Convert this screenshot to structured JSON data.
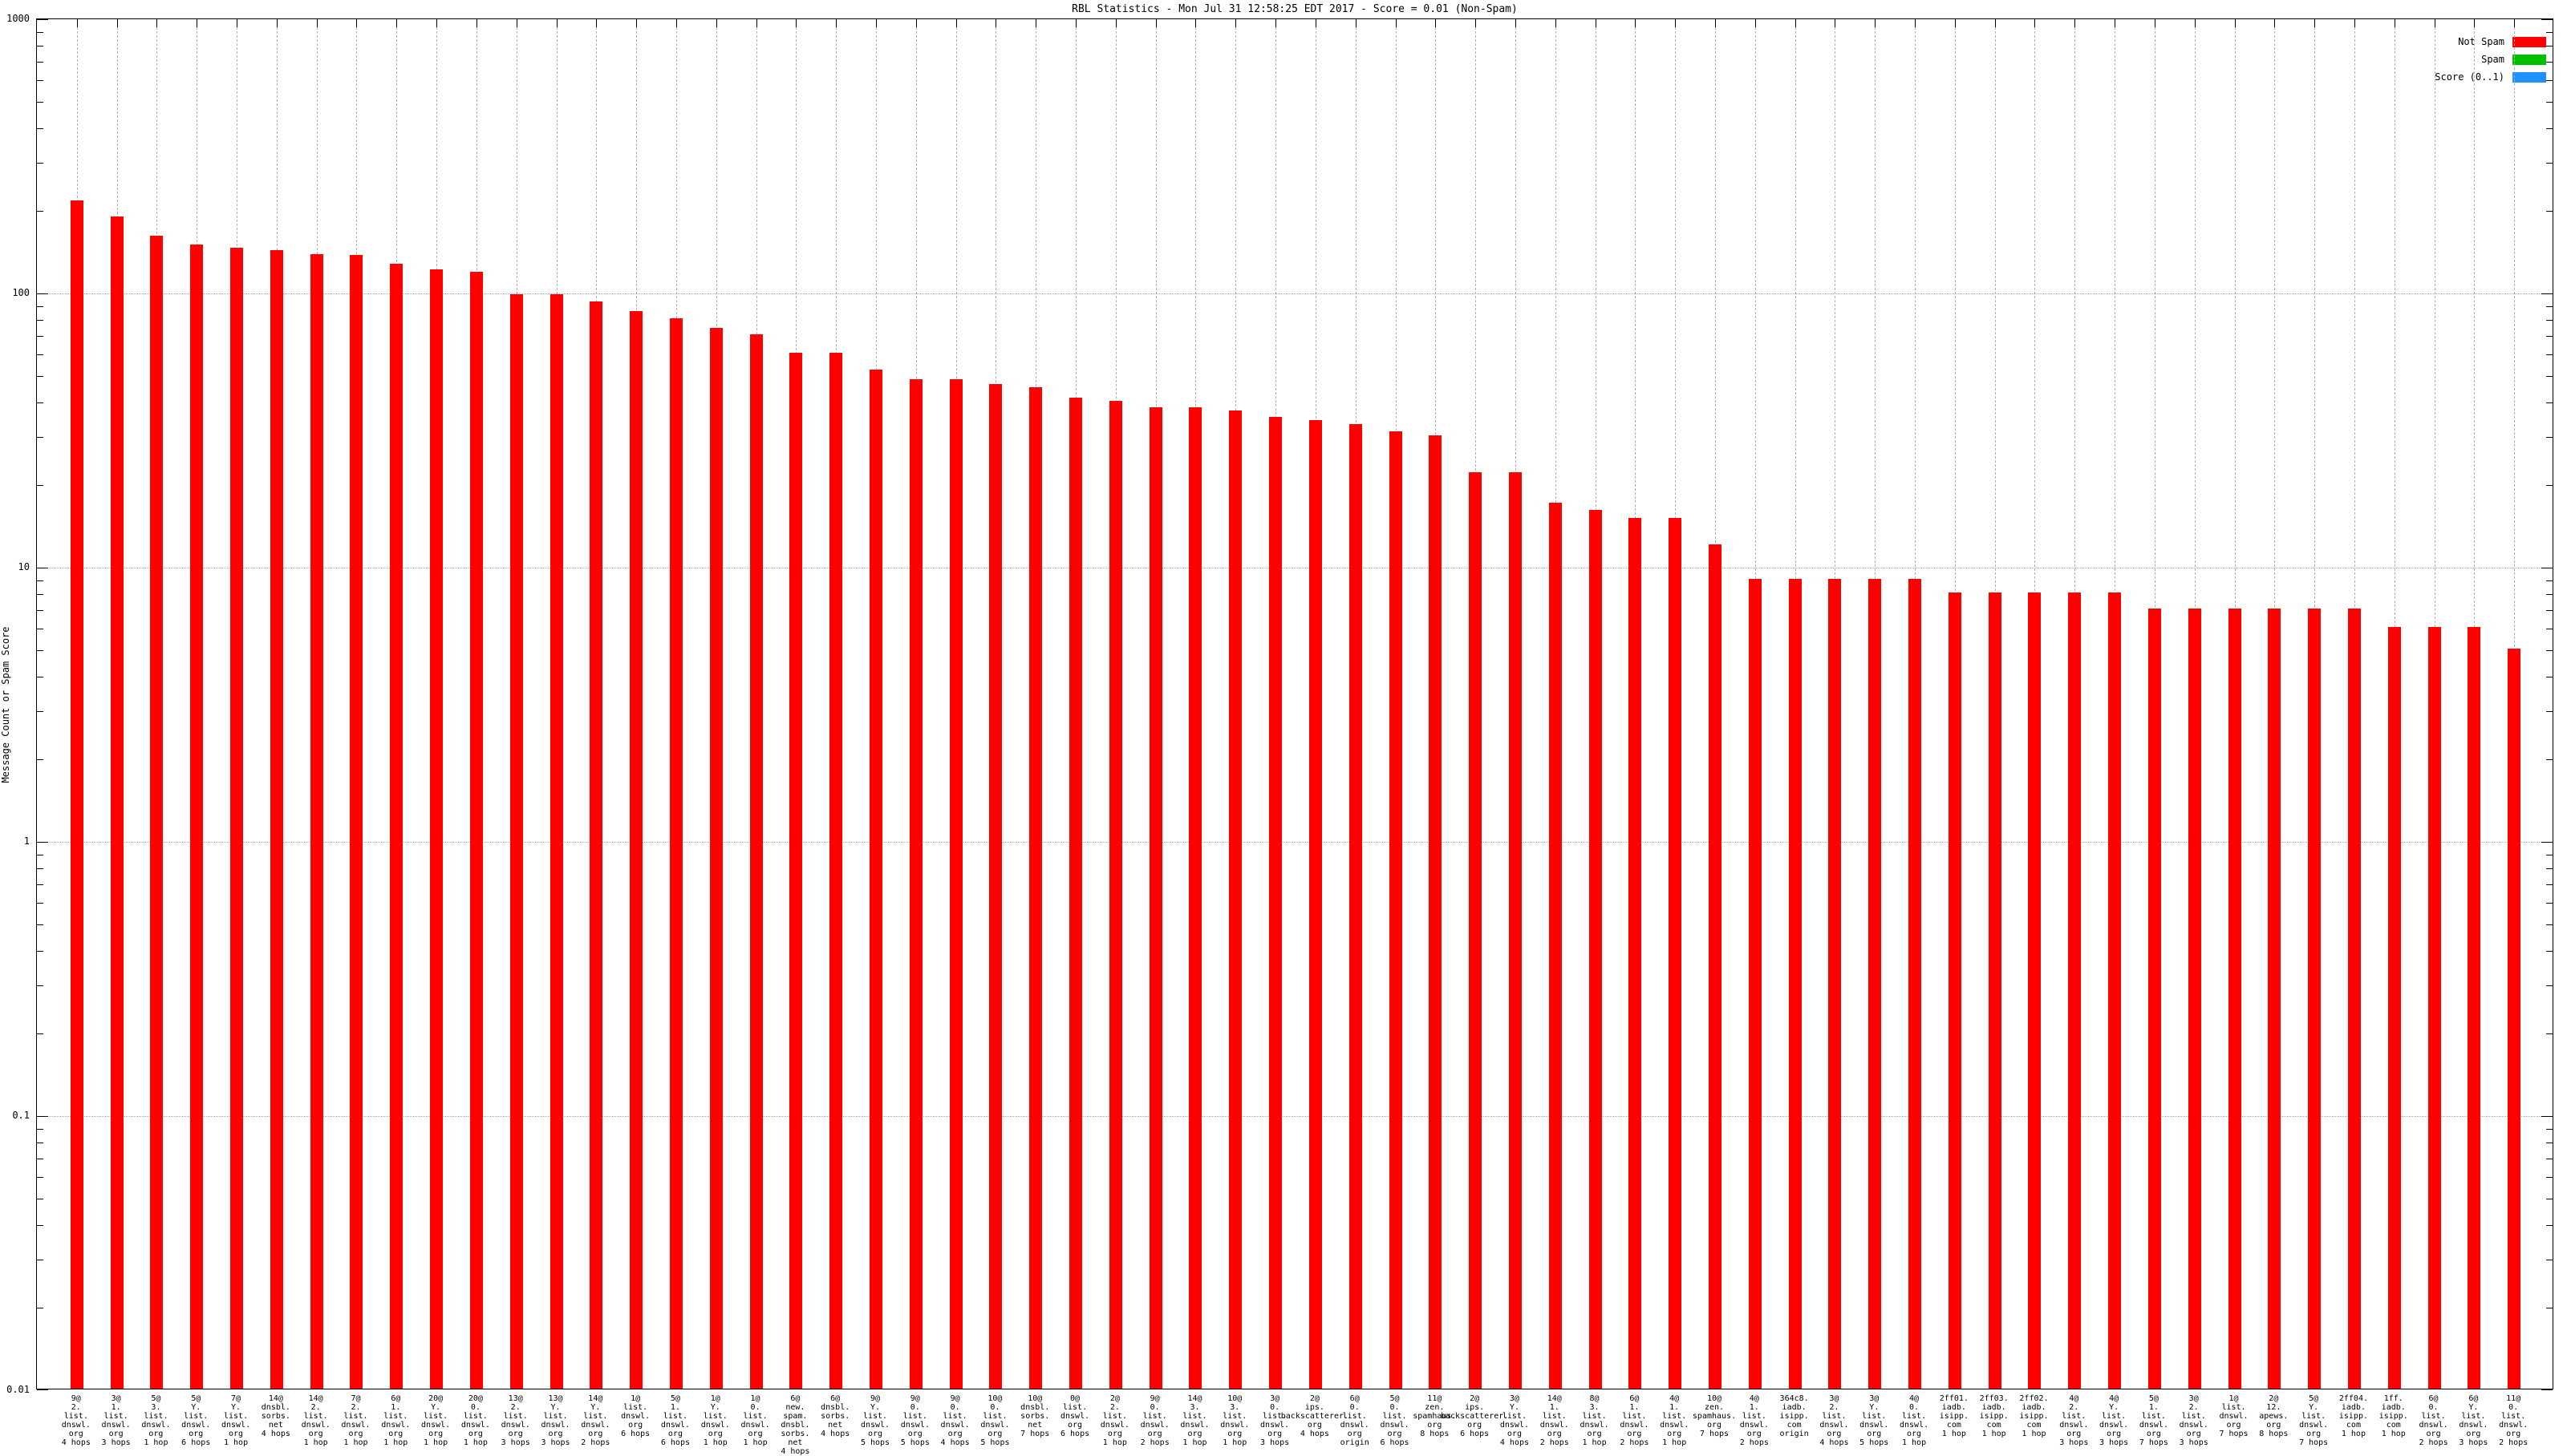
{
  "chart_data": {
    "type": "bar",
    "title": "RBL Statistics - Mon Jul 31 12:58:25 EDT 2017 - Score = 0.01 (Non-Spam)",
    "xlabel": "",
    "ylabel": "Message Count or Spam Score",
    "yscale": "log",
    "ylim": [
      0.01,
      1000
    ],
    "ytick_labels": [
      "1000",
      "100",
      "10",
      "1",
      "0.1",
      "0.01"
    ],
    "grid": true,
    "legend_position": "top-right",
    "bar_color": "#ff0000",
    "legend": [
      {
        "label": "Not Spam",
        "color": "#ff0000"
      },
      {
        "label": "Spam",
        "color": "#00c000"
      },
      {
        "label": "Score (0..1)",
        "color": "#1e90ff"
      }
    ],
    "series_note": "only Not Spam counts visible; Score = 0.01 flat at axis bottom",
    "bars": [
      {
        "rbl": "9@2.list.dnswl.org",
        "hops": "4 hops",
        "count": 215
      },
      {
        "rbl": "3@1.list.dnswl.org",
        "hops": "3 hops",
        "count": 188
      },
      {
        "rbl": "5@3.list.dnswl.org",
        "hops": "1 hop",
        "count": 160
      },
      {
        "rbl": "5@Y.list.dnswl.org",
        "hops": "6 hops",
        "count": 149
      },
      {
        "rbl": "7@Y.list.dnswl.org",
        "hops": "1 hop",
        "count": 145
      },
      {
        "rbl": "14@dnsbl.sorbs.net",
        "hops": "4 hops",
        "count": 142
      },
      {
        "rbl": "14@2.list.dnswl.org",
        "hops": "1 hop",
        "count": 137
      },
      {
        "rbl": "7@2.list.dnswl.org",
        "hops": "1 hop",
        "count": 136
      },
      {
        "rbl": "6@1.list.dnswl.org",
        "hops": "1 hop",
        "count": 127
      },
      {
        "rbl": "20@Y.list.dnswl.org",
        "hops": "1 hop",
        "count": 121
      },
      {
        "rbl": "20@0.list.dnswl.org",
        "hops": "1 hop",
        "count": 118
      },
      {
        "rbl": "13@2.list.dnswl.org",
        "hops": "3 hops",
        "count": 98
      },
      {
        "rbl": "13@Y.list.dnswl.org",
        "hops": "3 hops",
        "count": 98
      },
      {
        "rbl": "14@Y.list.dnswl.org",
        "hops": "2 hops",
        "count": 92
      },
      {
        "rbl": "1@list.dnswl.org",
        "hops": "6 hops",
        "count": 85
      },
      {
        "rbl": "5@1.list.dnswl.org",
        "hops": "6 hops",
        "count": 80
      },
      {
        "rbl": "1@Y.list.dnswl.org",
        "hops": "1 hop",
        "count": 74
      },
      {
        "rbl": "1@0.list.dnswl.org",
        "hops": "1 hop",
        "count": 70
      },
      {
        "rbl": "6@new.spam.dnsbl.sorbs.net",
        "hops": "4 hops",
        "count": 60
      },
      {
        "rbl": "6@dnsbl.sorbs.net",
        "hops": "4 hops",
        "count": 60
      },
      {
        "rbl": "9@Y.list.dnswl.org",
        "hops": "5 hops",
        "count": 52
      },
      {
        "rbl": "9@0.list.dnswl.org",
        "hops": "5 hops",
        "count": 48
      },
      {
        "rbl": "9@0.list.dnswl.org",
        "hops": "4 hops",
        "count": 48
      },
      {
        "rbl": "10@0.list.dnswl.org",
        "hops": "5 hops",
        "count": 46
      },
      {
        "rbl": "10@dnsbl.sorbs.net",
        "hops": "7 hops",
        "count": 45
      },
      {
        "rbl": "0@list.dnswl.org",
        "hops": "6 hops",
        "count": 41
      },
      {
        "rbl": "2@2.list.dnswl.org",
        "hops": "1 hop",
        "count": 40
      },
      {
        "rbl": "9@0.list.dnswl.org",
        "hops": "2 hops",
        "count": 38
      },
      {
        "rbl": "14@3.list.dnswl.org",
        "hops": "1 hop",
        "count": 38
      },
      {
        "rbl": "10@3.list.dnswl.org",
        "hops": "1 hop",
        "count": 37
      },
      {
        "rbl": "3@0.list.dnswl.org",
        "hops": "3 hops",
        "count": 35
      },
      {
        "rbl": "2@ips.backscatterer.org",
        "hops": "4 hops",
        "count": 34
      },
      {
        "rbl": "6@0.list.dnswl.org",
        "hops": "origin",
        "count": 33
      },
      {
        "rbl": "5@0.list.dnswl.org",
        "hops": "6 hops",
        "count": 31
      },
      {
        "rbl": "11@zen.spamhaus.org",
        "hops": "8 hops",
        "count": 30
      },
      {
        "rbl": "2@ips.backscatterer.org",
        "hops": "6 hops",
        "count": 22
      },
      {
        "rbl": "3@Y.list.dnswl.org",
        "hops": "4 hops",
        "count": 22
      },
      {
        "rbl": "14@1.list.dnswl.org",
        "hops": "2 hops",
        "count": 17
      },
      {
        "rbl": "8@3.list.dnswl.org",
        "hops": "1 hop",
        "count": 16
      },
      {
        "rbl": "6@1.list.dnswl.org",
        "hops": "2 hops",
        "count": 15
      },
      {
        "rbl": "4@1.list.dnswl.org",
        "hops": "1 hop",
        "count": 15
      },
      {
        "rbl": "10@zen.spamhaus.org",
        "hops": "7 hops",
        "count": 12
      },
      {
        "rbl": "4@1.list.dnswl.org",
        "hops": "2 hops",
        "count": 9
      },
      {
        "rbl": "364c8.iadb.isipp.com",
        "hops": "origin",
        "count": 9
      },
      {
        "rbl": "3@2.list.dnswl.org",
        "hops": "4 hops",
        "count": 9
      },
      {
        "rbl": "3@Y.list.dnswl.org",
        "hops": "5 hops",
        "count": 9
      },
      {
        "rbl": "4@0.list.dnswl.org",
        "hops": "1 hop",
        "count": 9
      },
      {
        "rbl": "2ff01.iadb.isipp.com",
        "hops": "1 hop",
        "count": 8
      },
      {
        "rbl": "2ff03.iadb.isipp.com",
        "hops": "1 hop",
        "count": 8
      },
      {
        "rbl": "2ff02.iadb.isipp.com",
        "hops": "1 hop",
        "count": 8
      },
      {
        "rbl": "4@2.list.dnswl.org",
        "hops": "3 hops",
        "count": 8
      },
      {
        "rbl": "4@Y.list.dnswl.org",
        "hops": "3 hops",
        "count": 8
      },
      {
        "rbl": "5@1.list.dnswl.org",
        "hops": "7 hops",
        "count": 7
      },
      {
        "rbl": "3@2.list.dnswl.org",
        "hops": "3 hops",
        "count": 7
      },
      {
        "rbl": "1@list.dnswl.org",
        "hops": "7 hops",
        "count": 7
      },
      {
        "rbl": "2@12.apews.org",
        "hops": "8 hops",
        "count": 7
      },
      {
        "rbl": "5@Y.list.dnswl.org",
        "hops": "7 hops",
        "count": 7
      },
      {
        "rbl": "2ff04.iadb.isipp.com",
        "hops": "1 hop",
        "count": 7
      },
      {
        "rbl": "1ff.iadb.isipp.com",
        "hops": "1 hop",
        "count": 6
      },
      {
        "rbl": "6@0.list.dnswl.org",
        "hops": "2 hops",
        "count": 6
      },
      {
        "rbl": "6@Y.list.dnswl.org",
        "hops": "3 hops",
        "count": 6
      },
      {
        "rbl": "11@0.list.dnswl.org",
        "hops": "2 hops",
        "count": 5
      }
    ]
  }
}
